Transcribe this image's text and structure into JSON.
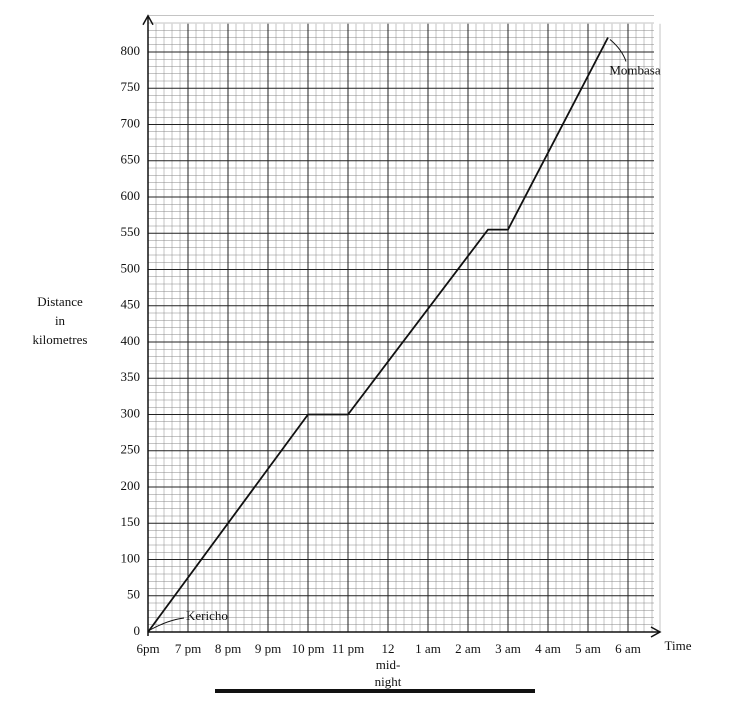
{
  "chart_data": {
    "type": "line",
    "y_label_lines": [
      "Distance",
      "in",
      "kilometres"
    ],
    "x_label": "Time",
    "x_note_lines": [
      "mid-",
      "night"
    ],
    "annotations": {
      "start": "Kericho",
      "end": "Mombasa"
    },
    "x": [
      0,
      4,
      5,
      8.5,
      9,
      11.5
    ],
    "values": [
      0,
      300,
      300,
      555,
      555,
      820
    ],
    "color": "#111111",
    "xlim": [
      0,
      12.8
    ],
    "ylim": [
      0,
      850
    ],
    "xticks": [
      {
        "value": 0,
        "label": "6pm"
      },
      {
        "value": 1,
        "label": "7 pm"
      },
      {
        "value": 2,
        "label": "8 pm"
      },
      {
        "value": 3,
        "label": "9 pm"
      },
      {
        "value": 4,
        "label": "10 pm"
      },
      {
        "value": 5,
        "label": "11 pm"
      },
      {
        "value": 6,
        "label": "12"
      },
      {
        "value": 7,
        "label": "1 am"
      },
      {
        "value": 8,
        "label": "2 am"
      },
      {
        "value": 9,
        "label": "3 am"
      },
      {
        "value": 10,
        "label": "4 am"
      },
      {
        "value": 11,
        "label": "5 am"
      },
      {
        "value": 12,
        "label": "6 am"
      }
    ],
    "yticks": [
      0,
      50,
      100,
      150,
      200,
      250,
      300,
      350,
      400,
      450,
      500,
      550,
      600,
      650,
      700,
      750,
      800
    ],
    "grid": true
  }
}
